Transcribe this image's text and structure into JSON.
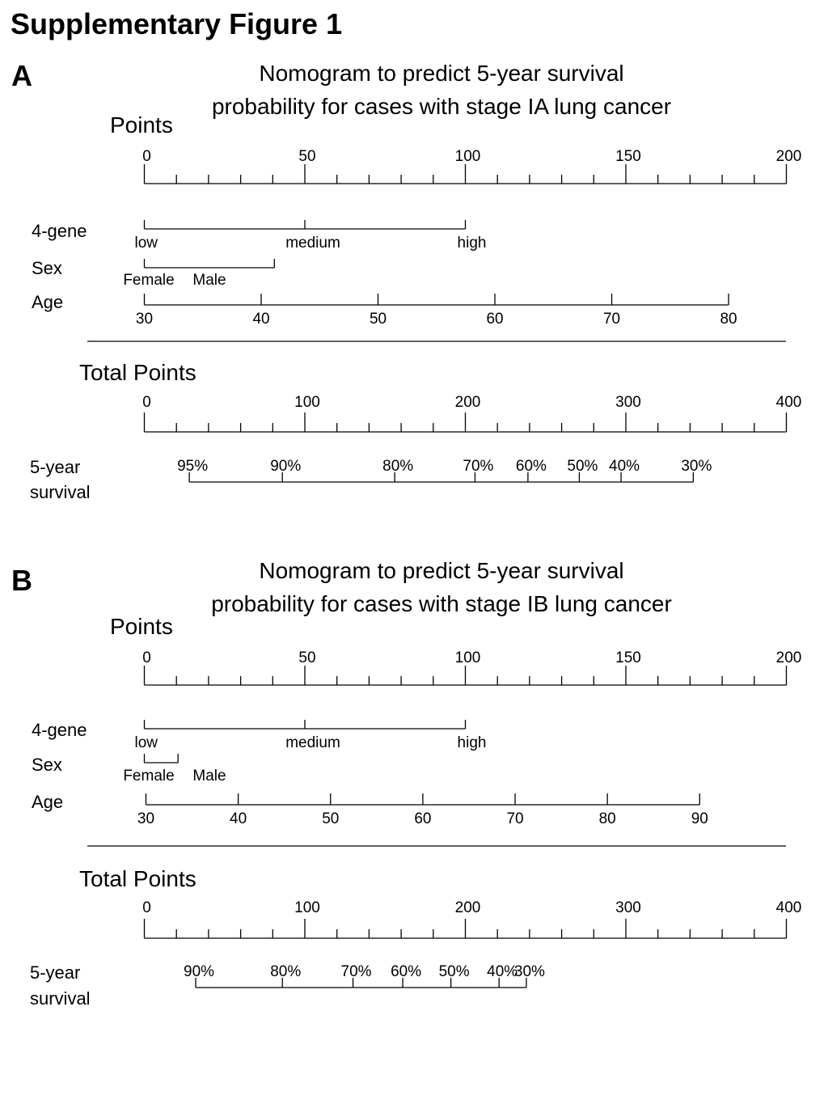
{
  "figure_title": "Supplementary Figure 1",
  "panels": [
    {
      "letter": "A",
      "title_lines": [
        "Nomogram  to predict 5-year survival",
        "probability for cases with stage IA lung cancer"
      ]
    },
    {
      "letter": "B",
      "title_lines": [
        "Nomogram  to predict 5-year survival",
        "probability for cases with stage IB lung cancer"
      ]
    }
  ],
  "chart_data": [
    {
      "type": "nomogram",
      "title": "Nomogram  to predict 5-year survival probability for cases with stage IA lung cancer",
      "points_scale": {
        "label": "Points",
        "range": [
          0,
          200
        ],
        "tick_labels": [
          0,
          50,
          100,
          150,
          200
        ],
        "minor_step": 10
      },
      "variables": [
        {
          "name": "4-gene",
          "type": "categorical",
          "levels": [
            {
              "label": "low",
              "points": 0
            },
            {
              "label": "medium",
              "points": 50
            },
            {
              "label": "high",
              "points": 100
            }
          ]
        },
        {
          "name": "Sex",
          "type": "categorical",
          "levels": [
            {
              "label": "Female",
              "points": 0
            },
            {
              "label": "Male",
              "points": 40.5
            }
          ]
        },
        {
          "name": "Age",
          "type": "continuous",
          "points_range": [
            0,
            182
          ],
          "tick_values": [
            30,
            40,
            50,
            60,
            70,
            80
          ]
        }
      ],
      "total_points_scale": {
        "label": "Total Points",
        "range": [
          0,
          400
        ],
        "tick_labels": [
          0,
          100,
          200,
          300,
          400
        ],
        "minor_step": 20
      },
      "survival": {
        "label_lines": [
          "5-year",
          "survival"
        ],
        "ticks": [
          {
            "label": "95%",
            "total_points": 28
          },
          {
            "label": "90%",
            "total_points": 86
          },
          {
            "label": "80%",
            "total_points": 156
          },
          {
            "label": "70%",
            "total_points": 206
          },
          {
            "label": "60%",
            "total_points": 239
          },
          {
            "label": "50%",
            "total_points": 271
          },
          {
            "label": "40%",
            "total_points": 297
          },
          {
            "label": "30%",
            "total_points": 342
          }
        ]
      }
    },
    {
      "type": "nomogram",
      "title": "Nomogram  to predict 5-year survival probability for cases with stage IB lung cancer",
      "points_scale": {
        "label": "Points",
        "range": [
          0,
          200
        ],
        "tick_labels": [
          0,
          50,
          100,
          150,
          200
        ],
        "minor_step": 10
      },
      "variables": [
        {
          "name": "4-gene",
          "type": "categorical",
          "levels": [
            {
              "label": "low",
              "points": 0
            },
            {
              "label": "medium",
              "points": 50
            },
            {
              "label": "high",
              "points": 100
            }
          ]
        },
        {
          "name": "Sex",
          "type": "categorical",
          "levels": [
            {
              "label": "Female",
              "points": 0
            },
            {
              "label": "Male",
              "points": 10.5
            }
          ]
        },
        {
          "name": "Age",
          "type": "continuous",
          "points_range": [
            0.5,
            173
          ],
          "tick_values": [
            30,
            40,
            50,
            60,
            70,
            80,
            90
          ]
        }
      ],
      "total_points_scale": {
        "label": "Total Points",
        "range": [
          0,
          400
        ],
        "tick_labels": [
          0,
          100,
          200,
          300,
          400
        ],
        "minor_step": 20
      },
      "survival": {
        "label_lines": [
          "5-year",
          "survival"
        ],
        "ticks": [
          {
            "label": "90%",
            "total_points": 32
          },
          {
            "label": "80%",
            "total_points": 86
          },
          {
            "label": "70%",
            "total_points": 130
          },
          {
            "label": "60%",
            "total_points": 161
          },
          {
            "label": "50%",
            "total_points": 191
          },
          {
            "label": "40%",
            "total_points": 221
          },
          {
            "label": "30%",
            "total_points": 238
          }
        ]
      }
    }
  ]
}
